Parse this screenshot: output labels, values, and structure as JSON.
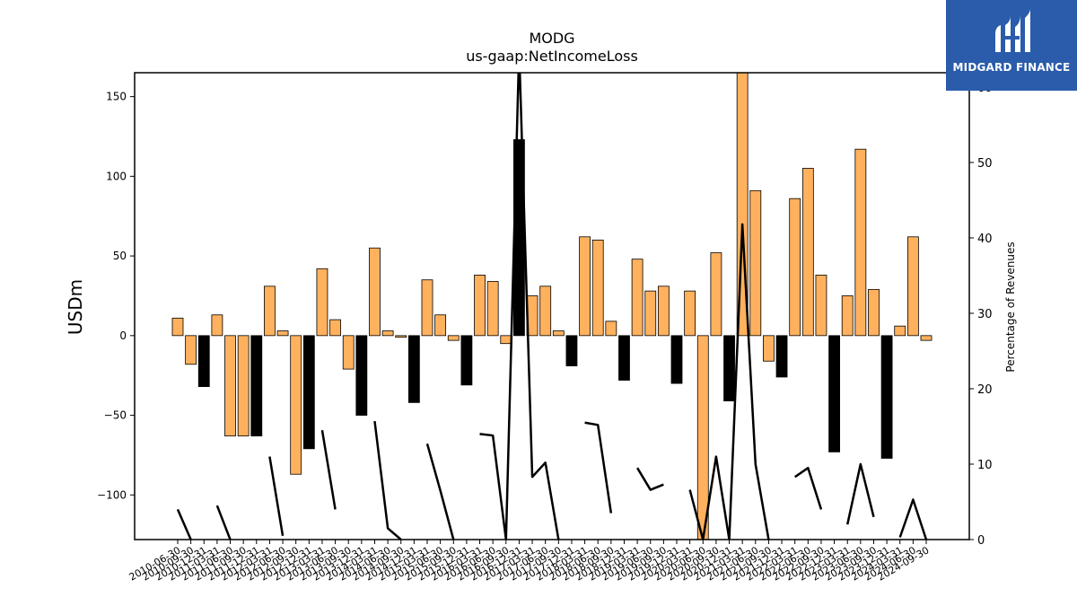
{
  "chart_data": {
    "type": "bar",
    "title": "MODG",
    "subtitle": "us-gaap:NetIncomeLoss",
    "ylabel": "USDm",
    "y2label": "Percentage of Revenues",
    "ylim": [
      -128,
      165
    ],
    "y2lim": [
      0,
      61.9
    ],
    "yticks": [
      -100,
      -50,
      0,
      50,
      100,
      150
    ],
    "y2ticks": [
      0,
      10,
      20,
      30,
      40,
      50
    ],
    "y2ticks_partial": [
      60
    ],
    "legend": "none",
    "grid": false,
    "bar_colors": {
      "positive": "#ffb15e",
      "highlight": "#000000"
    },
    "line_color": "#000000",
    "categories": [
      "2010-06-30",
      "2010-09-30",
      "2010-12-31",
      "2011-03-31",
      "2011-06-30",
      "2011-09-30",
      "2011-12-31",
      "2012-03-31",
      "2012-06-30",
      "2012-09-30",
      "2012-12-31",
      "2013-03-31",
      "2013-06-30",
      "2013-09-30",
      "2013-12-31",
      "2014-03-31",
      "2014-06-30",
      "2014-09-30",
      "2014-12-31",
      "2015-03-31",
      "2015-06-30",
      "2015-09-30",
      "2015-12-31",
      "2016-03-31",
      "2016-06-30",
      "2016-09-30",
      "2016-12-31",
      "2017-03-31",
      "2017-06-30",
      "2017-09-30",
      "2017-12-31",
      "2018-03-31",
      "2018-06-30",
      "2018-09-30",
      "2018-12-31",
      "2019-03-31",
      "2019-06-30",
      "2019-09-30",
      "2019-12-31",
      "2020-03-31",
      "2020-06-30",
      "2020-09-30",
      "2020-12-31",
      "2021-03-31",
      "2021-06-30",
      "2021-09-30",
      "2021-12-31",
      "2022-03-31",
      "2022-06-30",
      "2022-09-30",
      "2022-12-31",
      "2023-03-31",
      "2023-06-30",
      "2023-09-30",
      "2023-12-31",
      "2024-03-31",
      "2024-06-30",
      "2024-09-30"
    ],
    "values": [
      11,
      -18,
      -32,
      13,
      -63,
      -63,
      -63,
      31,
      3,
      -87,
      -71,
      42,
      10,
      -21,
      -50,
      55,
      3,
      -1,
      -42,
      35,
      13,
      -3,
      -31,
      38,
      34,
      -5,
      123,
      25,
      31,
      3,
      -19,
      62,
      60,
      9,
      -28,
      48,
      28,
      31,
      -30,
      28,
      -128,
      52,
      -41,
      165,
      91,
      -16,
      -26,
      86,
      105,
      38,
      -73,
      25,
      117,
      29,
      -77,
      6,
      62,
      -3
    ],
    "highlight": [
      false,
      false,
      true,
      false,
      false,
      false,
      true,
      false,
      false,
      false,
      true,
      false,
      false,
      false,
      true,
      false,
      false,
      false,
      true,
      false,
      false,
      false,
      true,
      false,
      false,
      false,
      true,
      false,
      false,
      false,
      true,
      false,
      false,
      false,
      true,
      false,
      false,
      false,
      true,
      false,
      false,
      false,
      true,
      false,
      false,
      false,
      true,
      false,
      false,
      false,
      true,
      false,
      false,
      false,
      true,
      false,
      false,
      false
    ],
    "pct_of_revenues": [
      4,
      0,
      null,
      4.5,
      0,
      null,
      null,
      11,
      0.5,
      null,
      null,
      14.5,
      4,
      null,
      null,
      15.7,
      1.5,
      0,
      null,
      12.7,
      6.5,
      0,
      null,
      14,
      13.8,
      0,
      65,
      8.3,
      10.2,
      0,
      null,
      15.5,
      15.2,
      3.5,
      null,
      9.5,
      6.6,
      7.3,
      null,
      6.6,
      0,
      11,
      0,
      41.8,
      10,
      0,
      null,
      8.3,
      9.5,
      4,
      null,
      2,
      10,
      3,
      null,
      0.3,
      5.3,
      0
    ]
  },
  "logo": {
    "text": "MIDGARD FINANCE",
    "background": "#2a5cab"
  }
}
